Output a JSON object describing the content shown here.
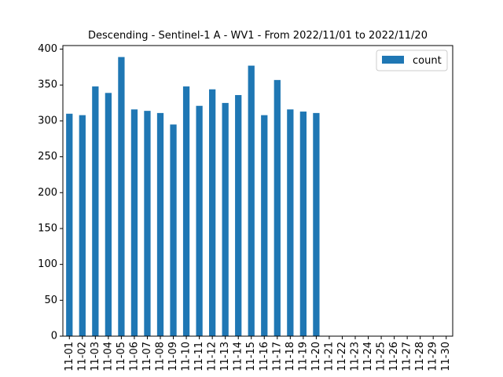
{
  "chart_data": {
    "type": "bar",
    "title": "Descending - Sentinel-1 A - WV1 - From 2022/11/01 to 2022/11/20",
    "xlabel": "",
    "ylabel": "",
    "categories": [
      "11-01",
      "11-02",
      "11-03",
      "11-04",
      "11-05",
      "11-06",
      "11-07",
      "11-08",
      "11-09",
      "11-10",
      "11-11",
      "11-12",
      "11-13",
      "11-14",
      "11-15",
      "11-16",
      "11-17",
      "11-18",
      "11-19",
      "11-20",
      "11-21",
      "11-22",
      "11-23",
      "11-24",
      "11-25",
      "11-26",
      "11-27",
      "11-28",
      "11-29",
      "11-30"
    ],
    "series": [
      {
        "name": "count",
        "color": "#1f77b4",
        "values": [
          310,
          308,
          348,
          339,
          389,
          316,
          314,
          311,
          295,
          348,
          321,
          344,
          325,
          336,
          377,
          308,
          357,
          316,
          313,
          311,
          0,
          0,
          0,
          0,
          0,
          0,
          0,
          0,
          0,
          0
        ]
      }
    ],
    "ylim": [
      0,
      405
    ],
    "yticks": [
      0,
      50,
      100,
      150,
      200,
      250,
      300,
      350,
      400
    ],
    "grid": false,
    "legend_position": "top-right"
  }
}
